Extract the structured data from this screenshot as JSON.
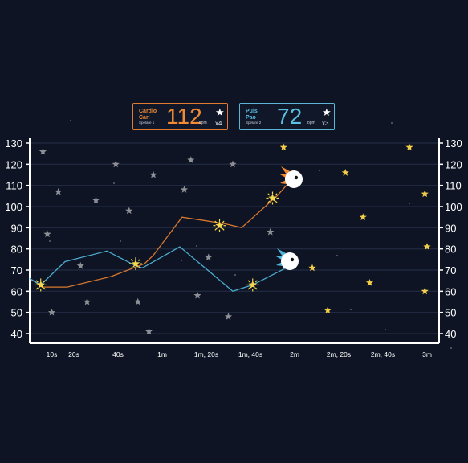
{
  "players": [
    {
      "name_line1": "Cardio",
      "name_line2": "Carl",
      "player_label": "Spelare 1",
      "bpm": "112",
      "unit": "bpm",
      "stars": "x4",
      "color": "#f08a35"
    },
    {
      "name_line1": "Puls",
      "name_line2": "Pao",
      "player_label": "Spelare 2",
      "bpm": "72",
      "unit": "bpm",
      "stars": "x3",
      "color": "#5cc0e3"
    }
  ],
  "chart_data": {
    "type": "line",
    "y_ticks": [
      "40",
      "50",
      "60",
      "70",
      "80",
      "90",
      "100",
      "110",
      "120",
      "130"
    ],
    "ylim": [
      35,
      132
    ],
    "x_ticks": [
      {
        "t": 10,
        "label": "10s"
      },
      {
        "t": 20,
        "label": "20s"
      },
      {
        "t": 40,
        "label": "40s"
      },
      {
        "t": 60,
        "label": "1m"
      },
      {
        "t": 80,
        "label": "1m, 20s"
      },
      {
        "t": 100,
        "label": "1m, 40s"
      },
      {
        "t": 120,
        "label": "2m"
      },
      {
        "t": 140,
        "label": "2m, 20s"
      },
      {
        "t": 160,
        "label": "2m, 40s"
      },
      {
        "t": 180,
        "label": "3m"
      }
    ],
    "xlim": [
      0,
      185
    ],
    "series": [
      {
        "name": "Cardio Carl",
        "color": "#d9782c",
        "points": [
          [
            0,
            66
          ],
          [
            6,
            62
          ],
          [
            17,
            62
          ],
          [
            37,
            67
          ],
          [
            52,
            73
          ],
          [
            56,
            77
          ],
          [
            69,
            95
          ],
          [
            88,
            92
          ],
          [
            96,
            90
          ],
          [
            112,
            105
          ],
          [
            118,
            112
          ]
        ]
      },
      {
        "name": "Puls Pao",
        "color": "#4aa9cc",
        "points": [
          [
            0,
            66
          ],
          [
            5,
            63
          ],
          [
            16,
            74
          ],
          [
            35,
            79
          ],
          [
            48,
            72
          ],
          [
            51,
            71
          ],
          [
            68,
            81
          ],
          [
            92,
            60
          ],
          [
            101,
            63
          ],
          [
            118,
            72
          ]
        ]
      }
    ],
    "collected_stars": [
      [
        5,
        63
      ],
      [
        48,
        73
      ],
      [
        86,
        91
      ],
      [
        101,
        63
      ],
      [
        110,
        104
      ]
    ],
    "grey_stars": [
      [
        6,
        126
      ],
      [
        8,
        87
      ],
      [
        10,
        50
      ],
      [
        13,
        107
      ],
      [
        23,
        72
      ],
      [
        26,
        55
      ],
      [
        30,
        103
      ],
      [
        39,
        120
      ],
      [
        45,
        98
      ],
      [
        49,
        55
      ],
      [
        54,
        41
      ],
      [
        56,
        115
      ],
      [
        70,
        108
      ],
      [
        73,
        122
      ],
      [
        76,
        58
      ],
      [
        81,
        76
      ],
      [
        90,
        48
      ],
      [
        92,
        120
      ],
      [
        109,
        88
      ]
    ],
    "yellow_stars": [
      [
        115,
        128
      ],
      [
        128,
        71
      ],
      [
        135,
        51
      ],
      [
        143,
        116
      ],
      [
        151,
        95
      ],
      [
        154,
        64
      ],
      [
        172,
        128
      ],
      [
        179,
        106
      ],
      [
        180,
        81
      ],
      [
        179,
        60
      ]
    ]
  }
}
